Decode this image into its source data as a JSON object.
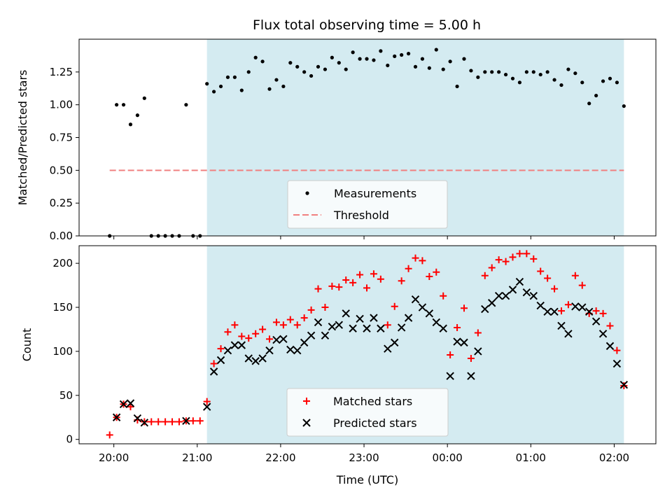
{
  "title": "Flux total observing time = 5.00 h",
  "colors": {
    "shade": "#d4ebf1",
    "measurement": "#000000",
    "threshold": "#f08080",
    "matched": "#ff0000",
    "predicted": "#000000"
  },
  "chart_data": [
    {
      "type": "scatter",
      "ylabel": "Matched/Predicted stars",
      "ylim": [
        0,
        1.5
      ],
      "yticks": [
        "0.00",
        "0.25",
        "0.50",
        "0.75",
        "1.00",
        "1.25"
      ],
      "ytick_values": [
        0,
        0.25,
        0.5,
        0.75,
        1.0,
        1.25
      ],
      "shaded_region": [
        "21:07",
        "02:07"
      ],
      "threshold": {
        "name": "Threshold",
        "value": 0.5,
        "x_range": [
          "19:57",
          "02:07"
        ]
      },
      "legend": {
        "placement": "lower center",
        "entries": [
          "Measurements",
          "Threshold"
        ]
      },
      "series": [
        {
          "name": "Measurements",
          "x": [
            "19:57",
            "20:02",
            "20:07",
            "20:12",
            "20:17",
            "20:22",
            "20:27",
            "20:32",
            "20:37",
            "20:42",
            "20:47",
            "20:52",
            "20:57",
            "21:02",
            "21:07",
            "21:12",
            "21:17",
            "21:22",
            "21:27",
            "21:32",
            "21:37",
            "21:42",
            "21:47",
            "21:52",
            "21:57",
            "22:02",
            "22:07",
            "22:12",
            "22:17",
            "22:22",
            "22:27",
            "22:32",
            "22:37",
            "22:42",
            "22:47",
            "22:52",
            "22:57",
            "23:02",
            "23:07",
            "23:12",
            "23:17",
            "23:22",
            "23:27",
            "23:32",
            "23:37",
            "23:42",
            "23:47",
            "23:52",
            "23:57",
            "00:02",
            "00:07",
            "00:12",
            "00:17",
            "00:22",
            "00:27",
            "00:32",
            "00:37",
            "00:42",
            "00:47",
            "00:52",
            "00:57",
            "01:02",
            "01:07",
            "01:12",
            "01:17",
            "01:22",
            "01:27",
            "01:32",
            "01:37",
            "01:42",
            "01:47",
            "01:52",
            "01:57",
            "02:02",
            "02:07"
          ],
          "values": [
            0.0,
            1.0,
            1.0,
            0.85,
            0.92,
            1.05,
            0.0,
            0.0,
            0.0,
            0.0,
            0.0,
            1.0,
            0.0,
            0.0,
            1.16,
            1.1,
            1.14,
            1.21,
            1.21,
            1.11,
            1.25,
            1.36,
            1.33,
            1.12,
            1.19,
            1.14,
            1.32,
            1.29,
            1.25,
            1.22,
            1.29,
            1.27,
            1.36,
            1.32,
            1.27,
            1.4,
            1.35,
            1.35,
            1.34,
            1.41,
            1.3,
            1.37,
            1.38,
            1.39,
            1.29,
            1.35,
            1.28,
            1.42,
            1.27,
            1.33,
            1.14,
            1.35,
            1.26,
            1.21,
            1.25,
            1.25,
            1.25,
            1.23,
            1.2,
            1.17,
            1.25,
            1.25,
            1.23,
            1.25,
            1.19,
            1.15,
            1.27,
            1.24,
            1.17,
            1.01,
            1.07,
            1.18,
            1.2,
            1.17,
            0.99
          ]
        }
      ]
    },
    {
      "type": "scatter",
      "ylabel": "Count",
      "xlabel": "Time (UTC)",
      "ylim": [
        -5,
        220
      ],
      "yticks": [
        "0",
        "50",
        "100",
        "150",
        "200"
      ],
      "ytick_values": [
        0,
        50,
        100,
        150,
        200
      ],
      "xticks": [
        "20:00",
        "21:00",
        "22:00",
        "23:00",
        "00:00",
        "01:00",
        "02:00"
      ],
      "shaded_region": [
        "21:07",
        "02:07"
      ],
      "legend": {
        "placement": "lower center",
        "entries": [
          "Matched stars",
          "Predicted stars"
        ]
      },
      "series": [
        {
          "name": "Matched stars",
          "x": [
            "19:57",
            "20:02",
            "20:07",
            "20:12",
            "20:17",
            "20:22",
            "20:27",
            "20:32",
            "20:37",
            "20:42",
            "20:47",
            "20:52",
            "20:57",
            "21:02",
            "21:07",
            "21:12",
            "21:17",
            "21:22",
            "21:27",
            "21:32",
            "21:37",
            "21:42",
            "21:47",
            "21:52",
            "21:57",
            "22:02",
            "22:07",
            "22:12",
            "22:17",
            "22:22",
            "22:27",
            "22:32",
            "22:37",
            "22:42",
            "22:47",
            "22:52",
            "22:57",
            "23:02",
            "23:07",
            "23:12",
            "23:17",
            "23:22",
            "23:27",
            "23:32",
            "23:37",
            "23:42",
            "23:47",
            "23:52",
            "23:57",
            "00:02",
            "00:07",
            "00:12",
            "00:17",
            "00:22",
            "00:27",
            "00:32",
            "00:37",
            "00:42",
            "00:47",
            "00:52",
            "00:57",
            "01:02",
            "01:07",
            "01:12",
            "01:17",
            "01:22",
            "01:27",
            "01:32",
            "01:37",
            "01:42",
            "01:47",
            "01:52",
            "01:57",
            "02:02",
            "02:07"
          ],
          "values": [
            5,
            25,
            40,
            37,
            22,
            20,
            20,
            20,
            20,
            20,
            20,
            21,
            21,
            21,
            43,
            86,
            103,
            122,
            130,
            117,
            115,
            120,
            125,
            114,
            133,
            130,
            136,
            130,
            138,
            147,
            171,
            150,
            174,
            173,
            181,
            178,
            187,
            172,
            188,
            182,
            130,
            151,
            180,
            194,
            206,
            203,
            185,
            190,
            163,
            96,
            127,
            149,
            92,
            121,
            186,
            195,
            204,
            202,
            207,
            211,
            211,
            205,
            191,
            183,
            171,
            146,
            153,
            186,
            175,
            143,
            146,
            143,
            129,
            101,
            61
          ]
        },
        {
          "name": "Predicted stars",
          "x": [
            "19:57",
            "20:02",
            "20:07",
            "20:12",
            "20:17",
            "20:22",
            "20:27",
            "20:32",
            "20:37",
            "20:42",
            "20:47",
            "20:52",
            "20:57",
            "21:02",
            "21:07",
            "21:12",
            "21:17",
            "21:22",
            "21:27",
            "21:32",
            "21:37",
            "21:42",
            "21:47",
            "21:52",
            "21:57",
            "22:02",
            "22:07",
            "22:12",
            "22:17",
            "22:22",
            "22:27",
            "22:32",
            "22:37",
            "22:42",
            "22:47",
            "22:52",
            "22:57",
            "23:02",
            "23:07",
            "23:12",
            "23:17",
            "23:22",
            "23:27",
            "23:32",
            "23:37",
            "23:42",
            "23:47",
            "23:52",
            "23:57",
            "00:02",
            "00:07",
            "00:12",
            "00:17",
            "00:22",
            "00:27",
            "00:32",
            "00:37",
            "00:42",
            "00:47",
            "00:52",
            "00:57",
            "01:02",
            "01:07",
            "01:12",
            "01:17",
            "01:22",
            "01:27",
            "01:32",
            "01:37",
            "01:42",
            "01:47",
            "01:52",
            "01:57",
            "02:02",
            "02:07"
          ],
          "values": [
            null,
            25,
            40,
            41,
            24,
            19,
            null,
            null,
            null,
            null,
            null,
            21,
            null,
            null,
            37,
            77,
            90,
            101,
            107,
            107,
            92,
            89,
            92,
            101,
            113,
            114,
            102,
            101,
            110,
            118,
            133,
            118,
            128,
            130,
            143,
            126,
            137,
            126,
            138,
            126,
            103,
            110,
            127,
            138,
            159,
            150,
            143,
            133,
            126,
            72,
            111,
            110,
            72,
            100,
            148,
            155,
            163,
            163,
            170,
            179,
            167,
            163,
            152,
            145,
            145,
            129,
            120,
            151,
            150,
            145,
            134,
            120,
            106,
            86,
            62
          ]
        }
      ]
    }
  ]
}
